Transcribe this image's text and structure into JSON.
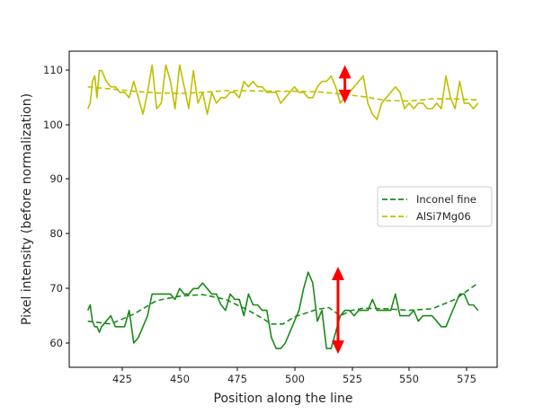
{
  "chart_data": {
    "type": "line",
    "title": "",
    "xlabel": "Position along the line",
    "ylabel": "Pixel intensity (before normalization)",
    "xlim": [
      402,
      588
    ],
    "ylim": [
      57.5,
      113.5
    ],
    "xticks": [
      425,
      450,
      475,
      500,
      525,
      550,
      575
    ],
    "yticks": [
      60,
      70,
      80,
      90,
      100,
      110
    ],
    "grid": false,
    "legend_position": "center right",
    "legend": [
      "Inconel fine",
      "AlSi7Mg06"
    ],
    "series": [
      {
        "name": "AlSi7Mg06 (raw)",
        "style": "solid",
        "color": "#bfbf00",
        "x": [
          410,
          411,
          412,
          413,
          414,
          415,
          416,
          417,
          418,
          420,
          422,
          424,
          426,
          428,
          430,
          432,
          434,
          436,
          438,
          439,
          440,
          442,
          444,
          446,
          448,
          450,
          452,
          454,
          456,
          458,
          460,
          462,
          464,
          466,
          468,
          470,
          472,
          474,
          476,
          478,
          480,
          482,
          484,
          486,
          488,
          490,
          492,
          494,
          496,
          498,
          500,
          502,
          504,
          506,
          508,
          510,
          512,
          514,
          516,
          518,
          520,
          522,
          524,
          526,
          528,
          530,
          532,
          534,
          536,
          538,
          540,
          542,
          544,
          546,
          548,
          550,
          552,
          554,
          556,
          558,
          560,
          562,
          564,
          566,
          568,
          570,
          572,
          574,
          576,
          578,
          580
        ],
        "y": [
          103,
          104,
          108,
          109,
          105,
          110,
          110,
          109,
          108,
          107,
          107,
          106,
          106,
          105,
          108,
          105,
          102,
          106,
          111,
          107,
          103,
          104,
          111,
          108,
          103,
          111,
          107,
          103,
          110,
          104,
          106,
          102,
          106,
          104,
          105,
          105,
          106,
          106,
          105,
          108,
          107,
          108,
          107,
          107,
          106,
          106,
          106,
          104,
          105,
          106,
          107,
          106,
          106,
          105,
          105,
          107,
          108,
          108,
          109,
          107,
          104,
          105,
          106,
          107,
          108,
          109,
          104,
          102,
          101,
          104,
          105,
          106,
          107,
          106,
          103,
          104,
          103,
          104,
          104,
          103,
          103,
          104,
          103,
          109,
          105,
          103,
          108,
          104,
          104,
          103,
          104
        ]
      },
      {
        "name": "AlSi7Mg06",
        "style": "dashed",
        "color": "#bfbf00",
        "x": [
          410,
          420,
          430,
          440,
          450,
          460,
          470,
          480,
          490,
          500,
          510,
          520,
          530,
          540,
          550,
          560,
          570,
          580
        ],
        "y": [
          107,
          106.6,
          106.2,
          105.9,
          105.8,
          106,
          106.3,
          106.3,
          106.2,
          106.2,
          106.1,
          105.7,
          105.2,
          104.5,
          104.4,
          104.8,
          104.8,
          104.6
        ]
      },
      {
        "name": "Inconel fine (raw)",
        "style": "solid",
        "color": "#1a8a1a",
        "x": [
          410,
          411,
          412,
          413,
          414,
          415,
          416,
          418,
          420,
          422,
          424,
          426,
          428,
          430,
          432,
          434,
          436,
          438,
          440,
          442,
          444,
          446,
          448,
          450,
          452,
          454,
          456,
          458,
          460,
          462,
          464,
          466,
          468,
          470,
          472,
          474,
          476,
          478,
          480,
          482,
          484,
          486,
          488,
          490,
          492,
          494,
          496,
          498,
          500,
          502,
          504,
          506,
          508,
          510,
          512,
          514,
          516,
          518,
          520,
          522,
          524,
          526,
          528,
          530,
          532,
          534,
          536,
          538,
          540,
          542,
          544,
          546,
          548,
          550,
          552,
          554,
          556,
          558,
          560,
          562,
          564,
          566,
          568,
          570,
          572,
          574,
          576,
          578,
          580
        ],
        "y": [
          66,
          67,
          64,
          63,
          63,
          62,
          63,
          64,
          65,
          63,
          63,
          63,
          66,
          60,
          61,
          63,
          65,
          69,
          69,
          69,
          69,
          69,
          68,
          70,
          69,
          69,
          70,
          70,
          71,
          70,
          69,
          69,
          67,
          66,
          69,
          68,
          68,
          65,
          69,
          67,
          67,
          66,
          66,
          61,
          59,
          59,
          60,
          62,
          64,
          66,
          70,
          73,
          71,
          64,
          66,
          59,
          59,
          62,
          65,
          66,
          66,
          65,
          66,
          66,
          66,
          68,
          66,
          66,
          66,
          66,
          69,
          65,
          65,
          65,
          66,
          64,
          65,
          65,
          65,
          64,
          63,
          63,
          65,
          67,
          69,
          69,
          67,
          67,
          66
        ]
      },
      {
        "name": "Inconel fine",
        "style": "dashed",
        "color": "#1a8a1a",
        "x": [
          410,
          420,
          430,
          440,
          450,
          460,
          470,
          480,
          485,
          490,
          495,
          500,
          510,
          515,
          520,
          525,
          530,
          540,
          550,
          560,
          570,
          575,
          580
        ],
        "y": [
          64,
          63.5,
          65.3,
          67.8,
          68.6,
          68.9,
          68,
          66,
          64.8,
          63.5,
          63.5,
          64.8,
          66.2,
          66.5,
          65,
          66,
          66.4,
          66.3,
          66,
          66.3,
          68,
          69.5,
          71
        ]
      }
    ],
    "annotations": [
      {
        "type": "double-arrow",
        "color": "#ff0000",
        "x": 522,
        "y_from": 104,
        "y_to": 111,
        "label": ""
      },
      {
        "type": "double-arrow",
        "color": "#ff0000",
        "x": 519,
        "y_from": 58,
        "y_to": 74,
        "label": ""
      }
    ]
  },
  "axes": {
    "xlabel": "Position along the line",
    "ylabel": "Pixel intensity (before normalization)",
    "xtick_labels": [
      "425",
      "450",
      "475",
      "500",
      "525",
      "550",
      "575"
    ],
    "ytick_labels": [
      "60",
      "70",
      "80",
      "90",
      "100",
      "110"
    ]
  },
  "legend": {
    "items": [
      {
        "label": "Inconel fine",
        "color": "#1a8a1a"
      },
      {
        "label": "AlSi7Mg06",
        "color": "#bfbf00"
      }
    ]
  }
}
